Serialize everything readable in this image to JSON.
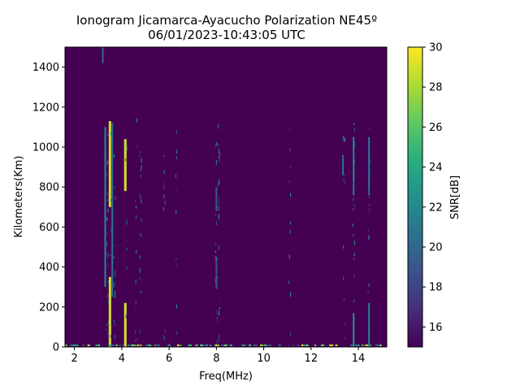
{
  "chart_data": {
    "type": "heatmap",
    "title_line_1": "Ionogram Jicamarca-Ayacucho Polarization NE45º",
    "title_line_2": "06/01/2023-10:43:05 UTC",
    "xlabel": "Freq(MHz)",
    "ylabel": "Kilometers(Km)",
    "xlim": [
      1.6,
      15.2
    ],
    "ylim": [
      0,
      1500
    ],
    "xticks": [
      2,
      4,
      6,
      8,
      10,
      12,
      14
    ],
    "yticks": [
      0,
      200,
      400,
      600,
      800,
      1000,
      1200,
      1400
    ],
    "colorbar": {
      "label": "SNR[dB]",
      "range": [
        15,
        30
      ],
      "ticks": [
        16,
        18,
        20,
        22,
        24,
        26,
        28,
        30
      ],
      "colormap": "viridis"
    },
    "background_color": "#440154",
    "echo_traces": [
      {
        "freq": 3.5,
        "km_from": 0,
        "km_to": 350,
        "snr": 29
      },
      {
        "freq": 3.5,
        "km_from": 700,
        "km_to": 1130,
        "snr": 29
      },
      {
        "freq": 3.3,
        "km_from": 300,
        "km_to": 1100,
        "snr": 22
      },
      {
        "freq": 3.6,
        "km_from": 250,
        "km_to": 1120,
        "snr": 21
      },
      {
        "freq": 4.15,
        "km_from": 0,
        "km_to": 220,
        "snr": 29
      },
      {
        "freq": 4.15,
        "km_from": 780,
        "km_to": 1040,
        "snr": 29
      },
      {
        "freq": 8.0,
        "km_from": 680,
        "km_to": 800,
        "snr": 19
      },
      {
        "freq": 8.0,
        "km_from": 290,
        "km_to": 450,
        "snr": 19
      },
      {
        "freq": 13.8,
        "km_from": 760,
        "km_to": 1050,
        "snr": 22
      },
      {
        "freq": 14.45,
        "km_from": 760,
        "km_to": 1050,
        "snr": 21
      },
      {
        "freq": 14.45,
        "km_from": 0,
        "km_to": 220,
        "snr": 22
      },
      {
        "freq": 13.8,
        "km_from": 0,
        "km_to": 170,
        "snr": 23
      },
      {
        "freq": 13.35,
        "km_from": 860,
        "km_to": 960,
        "snr": 21
      },
      {
        "freq": 3.2,
        "km_from": 1420,
        "km_to": 1500,
        "snr": 20
      }
    ]
  }
}
